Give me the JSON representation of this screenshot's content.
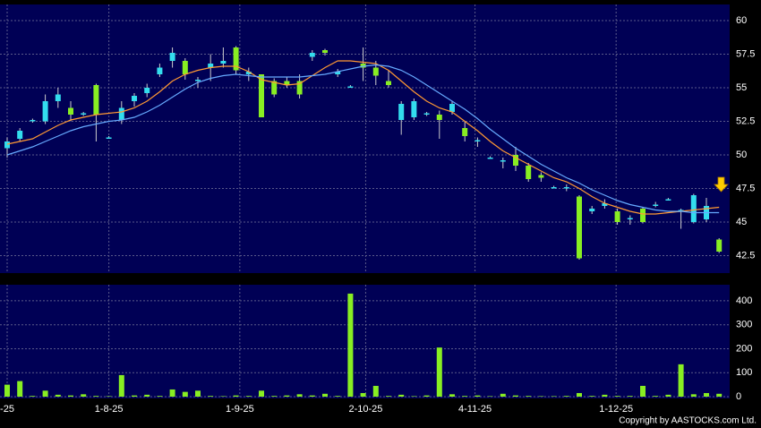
{
  "chart_data": [
    {
      "type": "candlestick",
      "open": [
        50.5,
        51.2,
        52.5,
        52.5,
        54,
        53.5,
        53,
        55.2,
        51.3,
        52.6,
        54,
        54.6,
        56,
        57,
        57,
        55.6,
        56.5,
        56.8,
        58,
        56,
        56,
        55.5,
        55.5,
        55.5,
        57.3,
        57.8,
        56,
        55.1,
        56.8,
        56.5,
        55.5,
        52.6,
        52.8,
        53,
        53,
        53.2,
        52,
        51,
        49.8,
        49.5,
        50,
        49.2,
        48.5,
        47.6,
        47.5,
        46.9,
        45.8,
        46.2,
        45.8,
        45.2,
        46,
        46.2,
        46.7,
        45.8,
        45,
        45.2,
        43.7
      ],
      "high": [
        51.3,
        52,
        52.7,
        54.5,
        55,
        54,
        53.2,
        55.3,
        51.4,
        54,
        54.6,
        55.3,
        56.8,
        58,
        57.2,
        55.8,
        57.5,
        58,
        58.1,
        56.5,
        56,
        55.7,
        55.8,
        56,
        57.8,
        57.9,
        56.4,
        55.2,
        58,
        57,
        56.3,
        54,
        54.2,
        53.2,
        53.3,
        54,
        52.5,
        51.3,
        49.9,
        49.8,
        50.6,
        49.4,
        48.7,
        47.7,
        47.8,
        47,
        46.2,
        46.7,
        46,
        45.5,
        46.1,
        46.5,
        46.8,
        46,
        47.1,
        46.8,
        43.8
      ],
      "low": [
        49.8,
        51,
        52.4,
        52.3,
        53.5,
        52.5,
        52.9,
        51,
        51.2,
        52.3,
        53.6,
        54.3,
        55.8,
        56.5,
        55.6,
        55,
        55.5,
        56.5,
        56,
        55.5,
        52.8,
        54.3,
        55,
        54.2,
        57,
        57.4,
        55.8,
        55,
        55.5,
        55.2,
        55,
        51.5,
        52.6,
        52.9,
        51.2,
        53,
        51,
        50.6,
        49.7,
        49,
        48.8,
        48,
        48,
        47.5,
        47.3,
        42.2,
        45.6,
        46,
        44.8,
        44.8,
        44.9,
        46.1,
        46.6,
        44.5,
        44.9,
        45,
        42.7
      ],
      "close": [
        51,
        51.8,
        52.6,
        54,
        54.5,
        53,
        53.1,
        53,
        51.3,
        53.5,
        54.4,
        55,
        56.5,
        57.6,
        56,
        55.6,
        56.8,
        57,
        56.3,
        56.2,
        52.8,
        54.5,
        55.2,
        54.5,
        57.6,
        57.6,
        56.2,
        55.1,
        56.5,
        55.9,
        55.2,
        53.8,
        54,
        53.1,
        52.6,
        53.8,
        51.4,
        51.1,
        49.8,
        49.6,
        49.2,
        48.2,
        48.3,
        47.6,
        47.6,
        42.3,
        46,
        46.4,
        45,
        45.3,
        45,
        46.3,
        46.7,
        45.9,
        47,
        46.2,
        42.8
      ],
      "up_color": "#33ddee",
      "down_color": "#88ee22",
      "series": [
        {
          "color": "#ff9933",
          "values": [
            50.8,
            51,
            51.2,
            51.7,
            52.2,
            52.6,
            52.8,
            53,
            53.1,
            53.2,
            53.5,
            54,
            54.7,
            55.5,
            56,
            56.3,
            56.5,
            56.6,
            56.6,
            56.2,
            55.6,
            55.4,
            55.2,
            55.3,
            55.9,
            56.5,
            57,
            57,
            56.9,
            56.8,
            56.3,
            55.5,
            54.7,
            54,
            53.5,
            53.2,
            52.5,
            51.8,
            51,
            50.3,
            49.8,
            49.3,
            48.8,
            48.3,
            48,
            47.5,
            46.9,
            46.4,
            46.1,
            45.8,
            45.6,
            45.6,
            45.7,
            45.8,
            45.9,
            46,
            46.1
          ]
        },
        {
          "color": "#66aaff",
          "values": [
            50,
            50.3,
            50.6,
            51,
            51.4,
            51.8,
            52.1,
            52.3,
            52.5,
            52.6,
            52.8,
            53.2,
            53.7,
            54.3,
            54.9,
            55.4,
            55.7,
            55.9,
            56,
            55.9,
            55.8,
            55.8,
            55.8,
            55.8,
            55.9,
            56,
            56.2,
            56.4,
            56.6,
            56.7,
            56.6,
            56.3,
            55.8,
            55.2,
            54.6,
            54,
            53.4,
            52.7,
            51.9,
            51.2,
            50.5,
            49.9,
            49.3,
            48.8,
            48.3,
            47.9,
            47.4,
            47,
            46.6,
            46.3,
            46.1,
            45.9,
            45.8,
            45.8,
            45.7,
            45.7,
            45.7
          ]
        }
      ],
      "ylim": [
        41.2,
        61.2
      ],
      "yticks": [
        42.5,
        45,
        47.5,
        50,
        52.5,
        55,
        57.5,
        60
      ],
      "xticks": [
        {
          "value": 0,
          "label": "-25"
        },
        {
          "value": 8,
          "label": "1-8-25"
        },
        {
          "value": 18.3,
          "label": "1-9-25"
        },
        {
          "value": 28.2,
          "label": "2-10-25"
        },
        {
          "value": 36.8,
          "label": "4-11-25"
        },
        {
          "value": 47.9,
          "label": "1-12-25"
        }
      ],
      "grid": true
    },
    {
      "type": "bar",
      "values": [
        50,
        65,
        3,
        25,
        8,
        5,
        10,
        3,
        2,
        90,
        5,
        8,
        3,
        30,
        20,
        25,
        3,
        2,
        5,
        3,
        25,
        3,
        5,
        10,
        5,
        12,
        3,
        430,
        15,
        45,
        3,
        8,
        2,
        5,
        205,
        10,
        3,
        5,
        2,
        12,
        5,
        3,
        2,
        2,
        3,
        15,
        3,
        8,
        3,
        3,
        45,
        3,
        8,
        135,
        10,
        15,
        12
      ],
      "color": "#88ee22",
      "ylim": [
        0,
        467
      ],
      "yticks": [
        0,
        100,
        200,
        300,
        400
      ],
      "grid": true
    }
  ],
  "copyright": "Copyright by AASTOCKS.com Ltd."
}
